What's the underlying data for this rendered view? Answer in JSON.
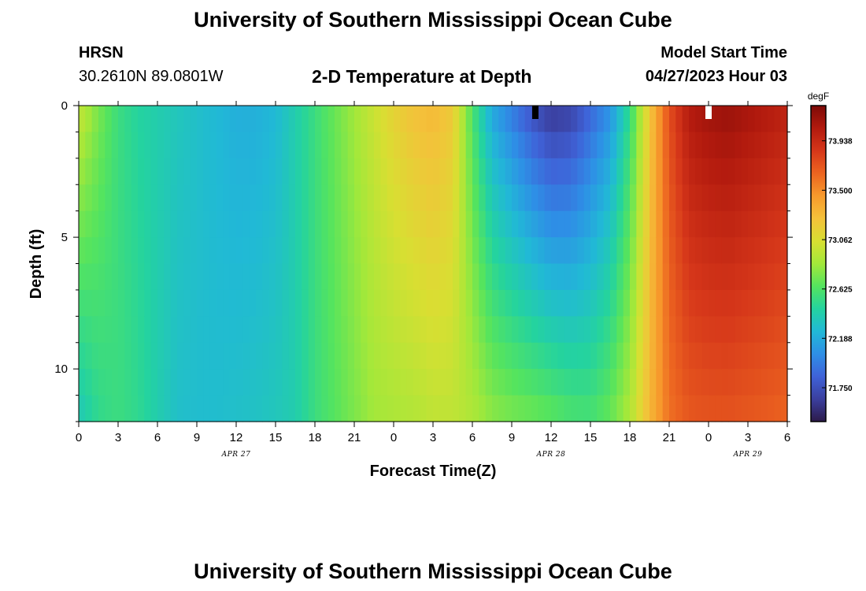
{
  "header": {
    "title": "University of Southern Mississippi Ocean Cube",
    "station": "HRSN",
    "coords": "30.2610N  89.0801W",
    "plot_title": "2-D Temperature at Depth",
    "model_start_label": "Model Start Time",
    "model_start_value": "04/27/2023 Hour 03"
  },
  "footer": {
    "title": "University of Southern Mississippi Ocean Cube"
  },
  "chart_data": {
    "type": "heatmap",
    "title": "2-D Temperature at Depth",
    "xlabel": "Forecast Time(Z)",
    "ylabel": "Depth (ft)",
    "x_tick_labels": [
      "0",
      "3",
      "6",
      "9",
      "12",
      "15",
      "18",
      "21",
      "0",
      "3",
      "6",
      "9",
      "12",
      "15",
      "18",
      "21",
      "0",
      "3",
      "6"
    ],
    "x_date_labels": [
      {
        "label": "APR 27",
        "hour_offset": 12
      },
      {
        "label": "APR 28",
        "hour_offset": 36
      },
      {
        "label": "APR 29",
        "hour_offset": 51
      }
    ],
    "x_range_hours": [
      0,
      54
    ],
    "y_ticks": [
      0,
      5,
      10
    ],
    "y_range_ft": [
      0,
      12
    ],
    "colorbar": {
      "unit": "degF",
      "ticks": [
        73.938,
        73.5,
        73.062,
        72.625,
        72.188,
        71.75
      ],
      "range": [
        71.45,
        74.25
      ],
      "colors": [
        "#2c1a4a",
        "#3b3f9e",
        "#3f62d8",
        "#2e8fe6",
        "#21b9d6",
        "#24d39f",
        "#55e45e",
        "#a3e83a",
        "#d8df32",
        "#f4c13a",
        "#f79a2c",
        "#ec6420",
        "#d6371a",
        "#b21a0e",
        "#7d0a07"
      ]
    },
    "temperature_profile": {
      "hours": [
        0,
        1.5,
        3,
        4.5,
        6,
        7.5,
        9,
        10.5,
        12,
        13.5,
        15,
        16.5,
        18,
        19.5,
        21,
        22.5,
        24,
        25.5,
        27,
        28.5,
        30,
        31.5,
        33,
        34.5,
        36,
        37.5,
        39,
        40.5,
        42,
        43.5,
        45,
        46.5,
        48,
        49.5,
        51,
        52.5,
        54
      ],
      "surface_degF": [
        73.0,
        72.75,
        72.55,
        72.45,
        72.4,
        72.35,
        72.3,
        72.25,
        72.2,
        72.2,
        72.25,
        72.4,
        72.55,
        72.7,
        72.85,
        73.0,
        73.15,
        73.25,
        73.3,
        73.2,
        72.6,
        72.15,
        71.95,
        71.75,
        71.6,
        71.65,
        71.85,
        72.05,
        72.5,
        73.2,
        73.75,
        74.05,
        74.12,
        74.15,
        74.1,
        74.05,
        74.0
      ],
      "bottom_degF": [
        72.35,
        72.5,
        72.55,
        72.5,
        72.4,
        72.3,
        72.28,
        72.28,
        72.3,
        72.32,
        72.35,
        72.4,
        72.55,
        72.65,
        72.75,
        72.85,
        72.88,
        72.9,
        72.95,
        72.95,
        72.9,
        72.8,
        72.75,
        72.72,
        72.68,
        72.62,
        72.6,
        72.7,
        72.9,
        73.3,
        73.6,
        73.7,
        73.72,
        73.72,
        73.7,
        73.68,
        73.65
      ]
    }
  }
}
